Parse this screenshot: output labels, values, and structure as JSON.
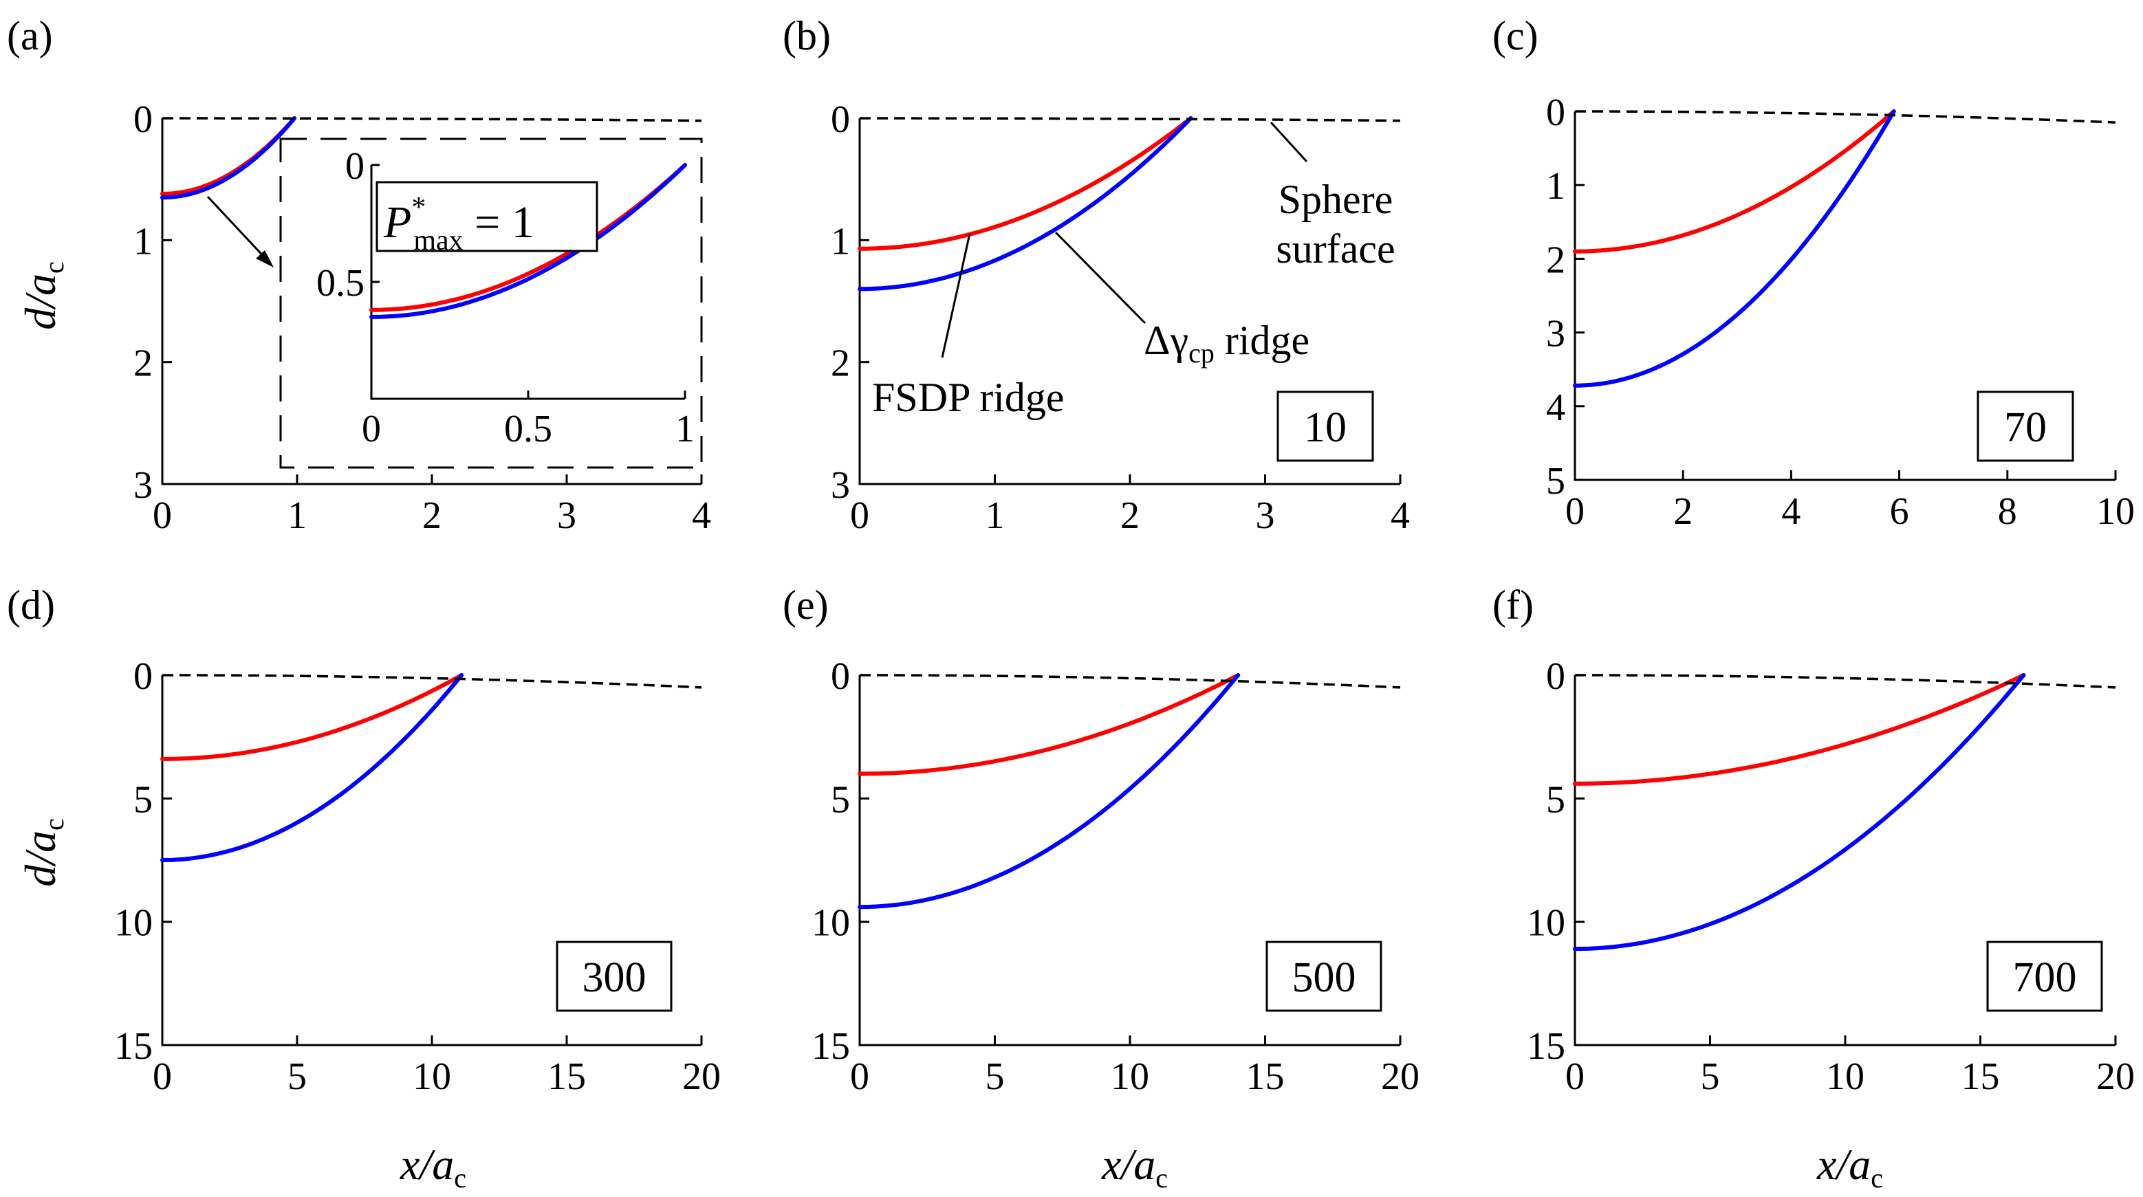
{
  "figure": {
    "x_axis_label_main": "x/a",
    "x_axis_label_sub": "c",
    "y_axis_label_main": "d/a",
    "y_axis_label_sub": "c"
  },
  "colors": {
    "fsdp": "#ff0000",
    "delta": "#0000ff",
    "sphere": "#000000"
  },
  "annotations": {
    "sphere_line1": "Sphere",
    "sphere_line2": "surface",
    "fsdp": "FSDP ridge",
    "delta_prefix": "Δγ",
    "delta_sub": "cp",
    "delta_suffix": " ridge",
    "pmax_symbol": "P",
    "pmax_sup": "*",
    "pmax_sub": "max",
    "pmax_value": " = 1"
  },
  "chart_data": [
    {
      "type": "line",
      "panel": "(a)",
      "box_label": "",
      "xlim": [
        0,
        4
      ],
      "ylim": [
        0,
        3
      ],
      "y_inverted": true,
      "xticks": [
        "0",
        "1",
        "2",
        "3",
        "4"
      ],
      "yticks": [
        "0",
        "1",
        "2",
        "3"
      ],
      "xlabel": "",
      "ylabel": "d/a_c",
      "series": [
        {
          "name": "FSDP ridge",
          "color": "#ff0000",
          "depth_at_0": 0.62,
          "x_end": 0.98
        },
        {
          "name": "Δγcp ridge",
          "color": "#0000ff",
          "depth_at_0": 0.65,
          "x_end": 0.98
        },
        {
          "name": "Sphere surface",
          "color": "#000000",
          "style": "dashed",
          "depth_at_xmax": 0.02
        }
      ],
      "inset": {
        "xlim": [
          0,
          1
        ],
        "ylim": [
          0,
          1
        ],
        "y_inverted": true,
        "xticks": [
          "0",
          "0.5",
          "1"
        ],
        "yticks": [
          "0",
          "0.5"
        ],
        "series": [
          {
            "name": "FSDP ridge",
            "color": "#ff0000",
            "depth_at_0": 0.62,
            "x_end": 1.0
          },
          {
            "name": "Δγcp ridge",
            "color": "#0000ff",
            "depth_at_0": 0.65,
            "x_end": 1.0
          }
        ]
      }
    },
    {
      "type": "line",
      "panel": "(b)",
      "box_label": "10",
      "xlim": [
        0,
        4
      ],
      "ylim": [
        0,
        3
      ],
      "y_inverted": true,
      "xticks": [
        "0",
        "1",
        "2",
        "3",
        "4"
      ],
      "yticks": [
        "0",
        "1",
        "2",
        "3"
      ],
      "xlabel": "",
      "ylabel": "",
      "series": [
        {
          "name": "FSDP ridge",
          "color": "#ff0000",
          "depth_at_0": 1.07,
          "x_end": 2.45
        },
        {
          "name": "Δγcp ridge",
          "color": "#0000ff",
          "depth_at_0": 1.4,
          "x_end": 2.45
        },
        {
          "name": "Sphere surface",
          "color": "#000000",
          "style": "dashed",
          "depth_at_xmax": 0.02
        }
      ]
    },
    {
      "type": "line",
      "panel": "(c)",
      "box_label": "70",
      "xlim": [
        0,
        10
      ],
      "ylim": [
        0,
        5
      ],
      "y_inverted": true,
      "xticks": [
        "0",
        "2",
        "4",
        "6",
        "8",
        "10"
      ],
      "yticks": [
        "0",
        "1",
        "2",
        "3",
        "4",
        "5"
      ],
      "xlabel": "",
      "ylabel": "",
      "series": [
        {
          "name": "FSDP ridge",
          "color": "#ff0000",
          "depth_at_0": 1.9,
          "x_end": 5.9
        },
        {
          "name": "Δγcp ridge",
          "color": "#0000ff",
          "depth_at_0": 3.72,
          "x_end": 5.9
        },
        {
          "name": "Sphere surface",
          "color": "#000000",
          "style": "dashed",
          "depth_at_xmax": 0.15
        }
      ]
    },
    {
      "type": "line",
      "panel": "(d)",
      "box_label": "300",
      "xlim": [
        0,
        20
      ],
      "ylim": [
        0,
        15
      ],
      "y_inverted": true,
      "xticks": [
        "0",
        "5",
        "10",
        "15",
        "20"
      ],
      "yticks": [
        "0",
        "5",
        "10",
        "15"
      ],
      "xlabel": "x/a_c",
      "ylabel": "d/a_c",
      "series": [
        {
          "name": "FSDP ridge",
          "color": "#ff0000",
          "depth_at_0": 3.4,
          "x_end": 11.1
        },
        {
          "name": "Δγcp ridge",
          "color": "#0000ff",
          "depth_at_0": 7.5,
          "x_end": 11.1
        },
        {
          "name": "Sphere surface",
          "color": "#000000",
          "style": "dashed",
          "depth_at_xmax": 0.5
        }
      ]
    },
    {
      "type": "line",
      "panel": "(e)",
      "box_label": "500",
      "xlim": [
        0,
        20
      ],
      "ylim": [
        0,
        15
      ],
      "y_inverted": true,
      "xticks": [
        "0",
        "5",
        "10",
        "15",
        "20"
      ],
      "yticks": [
        "0",
        "5",
        "10",
        "15"
      ],
      "xlabel": "x/a_c",
      "ylabel": "",
      "series": [
        {
          "name": "FSDP ridge",
          "color": "#ff0000",
          "depth_at_0": 4.0,
          "x_end": 14.0
        },
        {
          "name": "Δγcp ridge",
          "color": "#0000ff",
          "depth_at_0": 9.4,
          "x_end": 14.0
        },
        {
          "name": "Sphere surface",
          "color": "#000000",
          "style": "dashed",
          "depth_at_xmax": 0.5
        }
      ]
    },
    {
      "type": "line",
      "panel": "(f)",
      "box_label": "700",
      "xlim": [
        0,
        20
      ],
      "ylim": [
        0,
        15
      ],
      "y_inverted": true,
      "xticks": [
        "0",
        "5",
        "10",
        "15",
        "20"
      ],
      "yticks": [
        "0",
        "5",
        "10",
        "15"
      ],
      "xlabel": "x/a_c",
      "ylabel": "",
      "series": [
        {
          "name": "FSDP ridge",
          "color": "#ff0000",
          "depth_at_0": 4.4,
          "x_end": 16.6
        },
        {
          "name": "Δγcp ridge",
          "color": "#0000ff",
          "depth_at_0": 11.1,
          "x_end": 16.6
        },
        {
          "name": "Sphere surface",
          "color": "#000000",
          "style": "dashed",
          "depth_at_xmax": 0.5
        }
      ]
    }
  ]
}
